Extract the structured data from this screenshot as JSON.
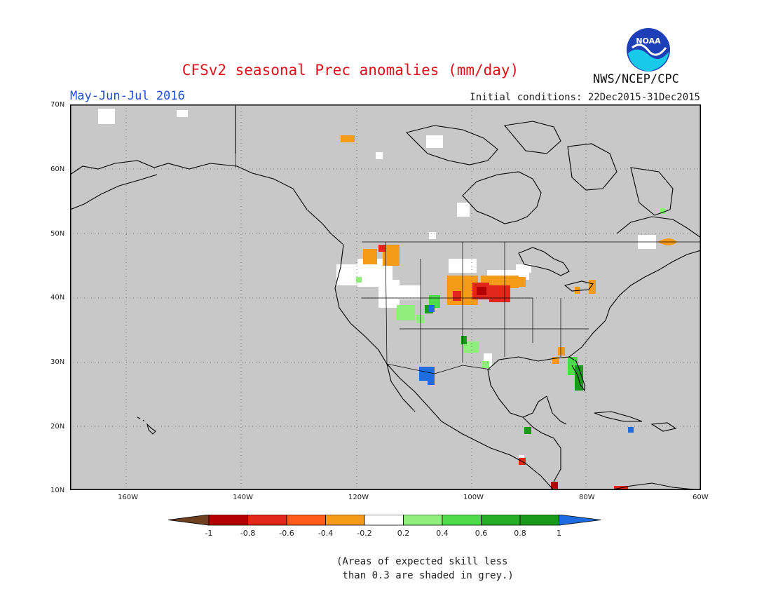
{
  "title": "CFSv2 seasonal Prec anomalies (mm/day)",
  "period": "May-Jun-Jul 2016",
  "initial_conditions": "Initial conditions: 22Dec2015-31Dec2015",
  "agency": "NWS/NCEP/CPC",
  "logo_text": "NOAA",
  "lat_labels": [
    "70N",
    "60N",
    "50N",
    "40N",
    "30N",
    "20N",
    "10N"
  ],
  "lon_labels": [
    "160W",
    "140W",
    "120W",
    "100W",
    "80W",
    "60W"
  ],
  "colorbar": {
    "ticks": [
      "-1",
      "-0.8",
      "-0.6",
      "-0.4",
      "-0.2",
      "0.2",
      "0.4",
      "0.6",
      "0.8",
      "1"
    ],
    "colors": [
      "#6e4020",
      "#b40000",
      "#e2261a",
      "#ff5a1a",
      "#f59b18",
      "#ffffff",
      "#8fee7e",
      "#4fdc4a",
      "#25ad25",
      "#1a9a1a",
      "#1f6ce0"
    ]
  },
  "note_line1": "(Areas of expected skill less",
  "note_line2": " than 0.3 are shaded in grey.)",
  "colors": {
    "map_background": "#c8c8c8",
    "land_outline": "#000000",
    "gridline": "#7a7a7a"
  }
}
